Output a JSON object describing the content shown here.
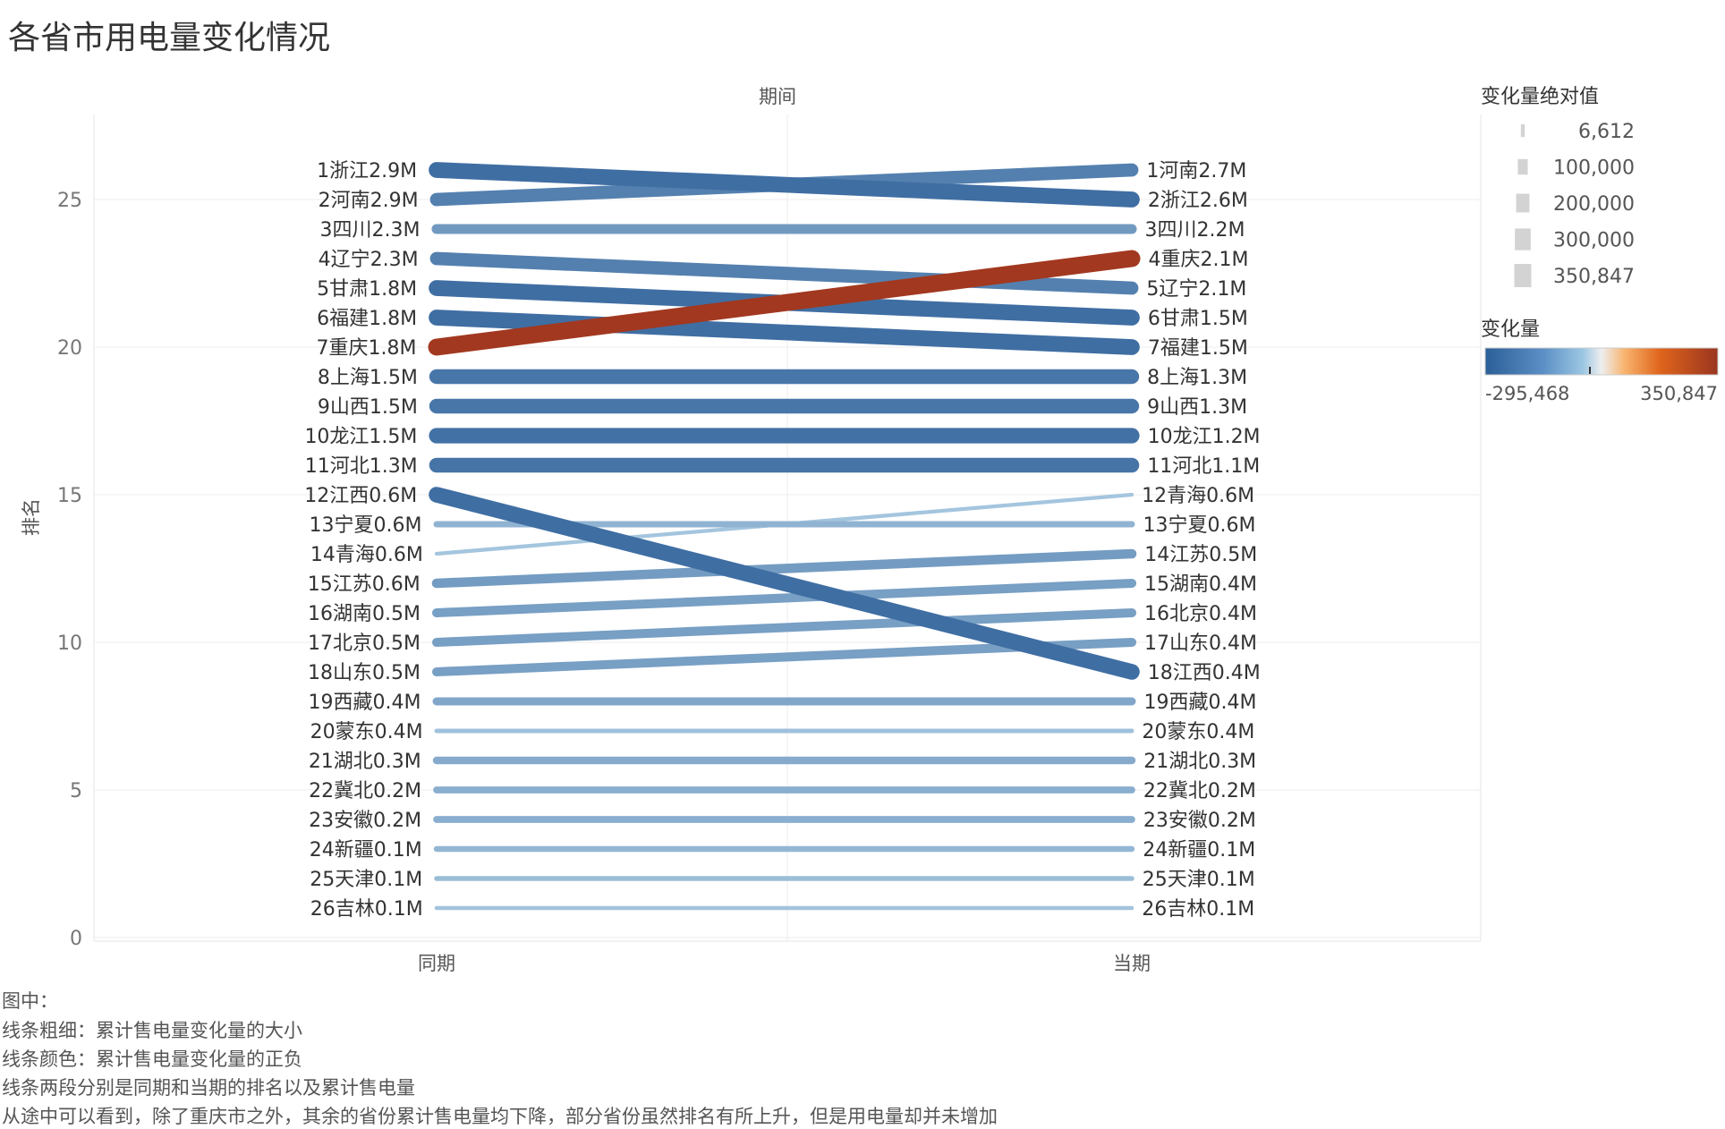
{
  "title": "各省市用电量变化情况",
  "colors": {
    "negative": "#3f6ea3",
    "negative_light": "#b6d4e8",
    "neutral": "#d4d4d4",
    "positive": "#a2381f"
  },
  "legend_size": {
    "title": "变化量绝对值",
    "entries": [
      "6,612",
      "100,000",
      "200,000",
      "300,000",
      "350,847"
    ],
    "values": [
      6612,
      100000,
      200000,
      300000,
      350847
    ]
  },
  "legend_color": {
    "title": "变化量",
    "min_label": "-295,468",
    "max_label": "350,847",
    "min": -295468,
    "max": 350847
  },
  "notes": [
    "图中：",
    "线条粗细：累计售电量变化量的大小",
    "线条颜色：累计售电量变化量的正负",
    "线条两段分别是同期和当期的排名以及累计售电量",
    "从途中可以看到，除了重庆市之外，其余的省份累计售电量均下降，部分省份虽然排名有所上升，但是用电量却并未增加"
  ],
  "chart_data": {
    "type": "line",
    "title": "各省市用电量变化情况",
    "column_header": "期间",
    "categories": [
      "同期",
      "当期"
    ],
    "ylabel": "排名",
    "ylim": [
      0,
      27
    ],
    "yticks": [
      0,
      5,
      10,
      15,
      20,
      25
    ],
    "grid": true,
    "legend_position": "right",
    "series": [
      {
        "name": "浙江",
        "y": [
          26,
          25
        ],
        "change": -300000,
        "labels": [
          "1浙江2.9M",
          "2浙江2.6M"
        ]
      },
      {
        "name": "河南",
        "y": [
          25,
          26
        ],
        "change": -200000,
        "labels": [
          "2河南2.9M",
          "1河南2.7M"
        ]
      },
      {
        "name": "四川",
        "y": [
          24,
          24
        ],
        "change": -100000,
        "labels": [
          "3四川2.3M",
          "3四川2.2M"
        ]
      },
      {
        "name": "辽宁",
        "y": [
          23,
          22
        ],
        "change": -200000,
        "labels": [
          "4辽宁2.3M",
          "5辽宁2.1M"
        ]
      },
      {
        "name": "甘肃",
        "y": [
          22,
          21
        ],
        "change": -300000,
        "labels": [
          "5甘肃1.8M",
          "6甘肃1.5M"
        ]
      },
      {
        "name": "福建",
        "y": [
          21,
          20
        ],
        "change": -300000,
        "labels": [
          "6福建1.8M",
          "7福建1.5M"
        ]
      },
      {
        "name": "重庆",
        "y": [
          20,
          23
        ],
        "change": 350847,
        "labels": [
          "7重庆1.8M",
          "4重庆2.1M"
        ]
      },
      {
        "name": "上海",
        "y": [
          19,
          19
        ],
        "change": -250000,
        "labels": [
          "8上海1.5M",
          "8上海1.3M"
        ]
      },
      {
        "name": "山西",
        "y": [
          18,
          18
        ],
        "change": -250000,
        "labels": [
          "9山西1.5M",
          "9山西1.3M"
        ]
      },
      {
        "name": "龙江",
        "y": [
          17,
          17
        ],
        "change": -280000,
        "labels": [
          "10龙江1.5M",
          "10龙江1.2M"
        ]
      },
      {
        "name": "河北",
        "y": [
          16,
          16
        ],
        "change": -260000,
        "labels": [
          "11河北1.3M",
          "11河北1.1M"
        ]
      },
      {
        "name": "江西",
        "y": [
          15,
          9
        ],
        "change": -295468,
        "labels": [
          "12江西0.6M",
          "18江西0.4M"
        ]
      },
      {
        "name": "宁夏",
        "y": [
          14,
          14
        ],
        "change": -30000,
        "labels": [
          "13宁夏0.6M",
          "13宁夏0.6M"
        ]
      },
      {
        "name": "青海",
        "y": [
          13,
          15
        ],
        "change": -6612,
        "labels": [
          "14青海0.6M",
          "12青海0.6M"
        ]
      },
      {
        "name": "江苏",
        "y": [
          12,
          13
        ],
        "change": -90000,
        "labels": [
          "15江苏0.6M",
          "14江苏0.5M"
        ]
      },
      {
        "name": "湖南",
        "y": [
          11,
          12
        ],
        "change": -80000,
        "labels": [
          "16湖南0.5M",
          "15湖南0.4M"
        ]
      },
      {
        "name": "北京",
        "y": [
          10,
          11
        ],
        "change": -80000,
        "labels": [
          "17北京0.5M",
          "16北京0.4M"
        ]
      },
      {
        "name": "山东",
        "y": [
          9,
          10
        ],
        "change": -80000,
        "labels": [
          "18山东0.5M",
          "17山东0.4M"
        ]
      },
      {
        "name": "西藏",
        "y": [
          8,
          8
        ],
        "change": -60000,
        "labels": [
          "19西藏0.4M",
          "19西藏0.4M"
        ]
      },
      {
        "name": "蒙东",
        "y": [
          7,
          7
        ],
        "change": -10000,
        "labels": [
          "20蒙东0.4M",
          "20蒙东0.4M"
        ]
      },
      {
        "name": "湖北",
        "y": [
          6,
          6
        ],
        "change": -50000,
        "labels": [
          "21湖北0.3M",
          "21湖北0.3M"
        ]
      },
      {
        "name": "冀北",
        "y": [
          5,
          5
        ],
        "change": -40000,
        "labels": [
          "22冀北0.2M",
          "22冀北0.2M"
        ]
      },
      {
        "name": "安徽",
        "y": [
          4,
          4
        ],
        "change": -40000,
        "labels": [
          "23安徽0.2M",
          "23安徽0.2M"
        ]
      },
      {
        "name": "新疆",
        "y": [
          3,
          3
        ],
        "change": -25000,
        "labels": [
          "24新疆0.1M",
          "24新疆0.1M"
        ]
      },
      {
        "name": "天津",
        "y": [
          2,
          2
        ],
        "change": -15000,
        "labels": [
          "25天津0.1M",
          "25天津0.1M"
        ]
      },
      {
        "name": "吉林",
        "y": [
          1,
          1
        ],
        "change": -8000,
        "labels": [
          "26吉林0.1M",
          "26吉林0.1M"
        ]
      }
    ]
  }
}
